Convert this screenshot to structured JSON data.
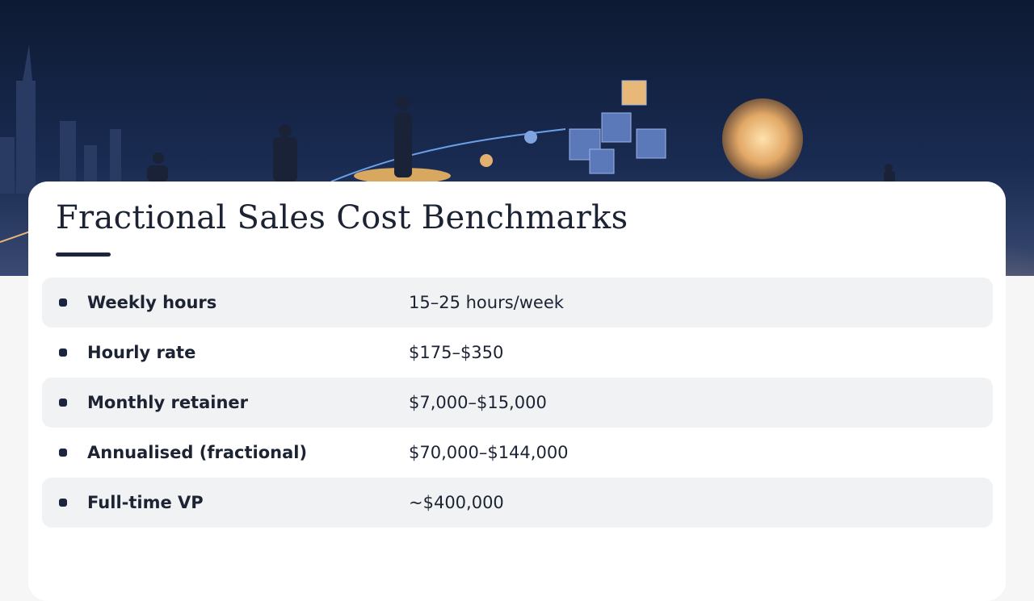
{
  "title": "Fractional Sales Cost Benchmarks",
  "rows": [
    {
      "label": "Weekly hours",
      "value": "15–25 hours/week"
    },
    {
      "label": "Hourly rate",
      "value": "$175–$350"
    },
    {
      "label": "Monthly retainer",
      "value": "$7,000–$15,000"
    },
    {
      "label": "Annualised (fractional)",
      "value": "$70,000–$144,000"
    },
    {
      "label": "Full-time VP",
      "value": "~$400,000"
    }
  ]
}
